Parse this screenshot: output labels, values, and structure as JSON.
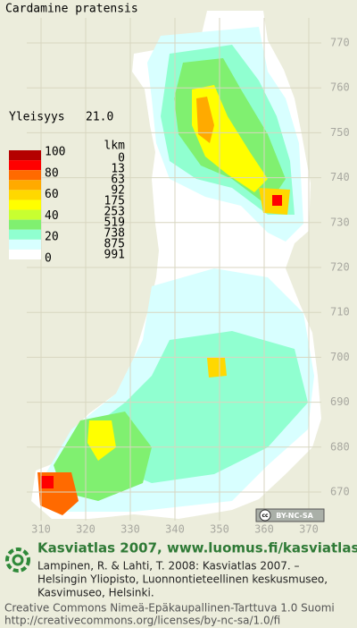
{
  "title": "Cardamine pratensis",
  "frequency": {
    "label": "Yleisyys",
    "value": "21.0"
  },
  "legend": {
    "scale_labels": [
      100,
      80,
      60,
      40,
      20,
      0
    ],
    "count_header": "lkm",
    "counts": [
      0,
      13,
      63,
      92,
      175,
      253,
      519,
      738,
      875,
      991
    ],
    "colors": [
      "#b40000",
      "#ff0000",
      "#ff6a00",
      "#ffaa00",
      "#ffd800",
      "#ffff00",
      "#c8ff30",
      "#80f070",
      "#90ffd0",
      "#d8ffff",
      "#ffffff"
    ]
  },
  "grid_labels": {
    "northing": [
      770,
      760,
      750,
      740,
      730,
      720,
      710,
      700,
      690,
      680,
      670
    ],
    "easting": [
      310,
      320,
      330,
      340,
      350,
      360,
      370
    ]
  },
  "license_badge": {
    "icon": "cc",
    "text": "BY-NC-SA"
  },
  "footer": {
    "heading": "Kasviatlas 2007, www.luomus.fi/kasviatlas",
    "citation": [
      "Lampinen, R. & Lahti, T. 2008: Kasviatlas 2007. –",
      "Helsingin Yliopisto, Luonnontieteellinen keskusmuseo,",
      "Kasvimuseo, Helsinki."
    ],
    "license": [
      "Creative Commons Nimeä-Epäkaupallinen-Tarttuva 1.0 Suomi",
      "http://creativecommons.org/licenses/by-nc-sa/1.0/fi"
    ]
  }
}
